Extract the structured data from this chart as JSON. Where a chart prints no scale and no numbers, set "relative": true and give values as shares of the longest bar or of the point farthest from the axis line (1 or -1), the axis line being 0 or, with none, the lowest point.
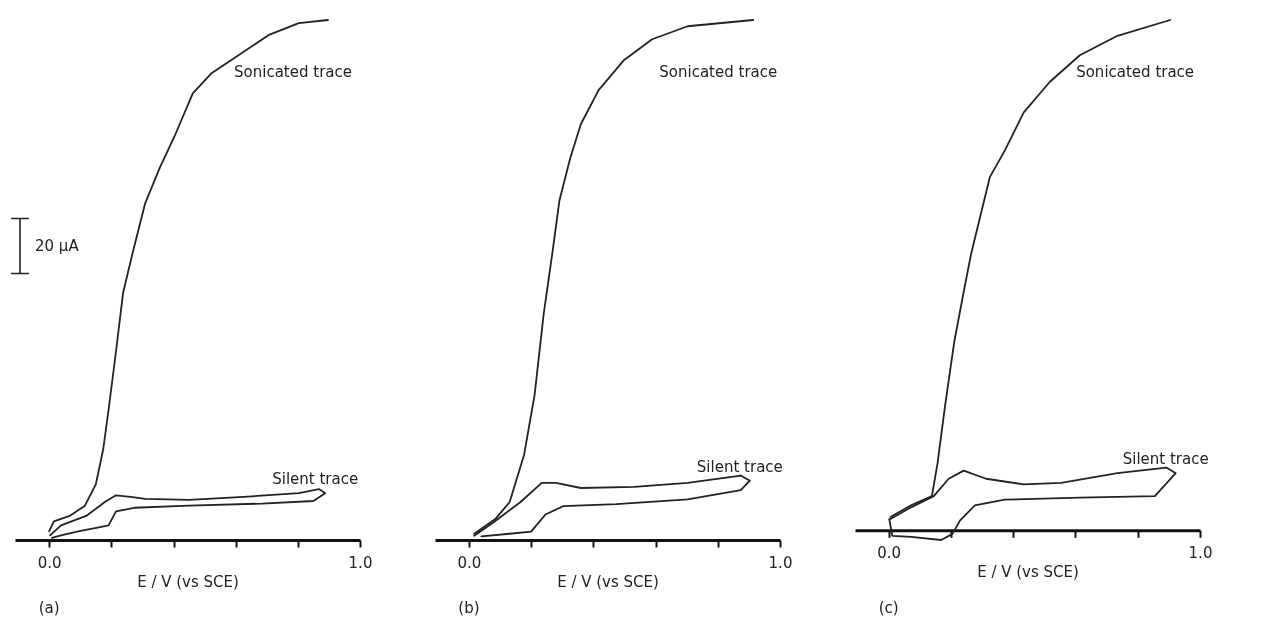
{
  "chart_data": [
    {
      "type": "line",
      "relative": true,
      "xlabel": "E / V (vs SCE)",
      "xlim": [
        -0.11,
        1.0
      ],
      "xticks": [
        {
          "value": 0,
          "label": "0.0"
        },
        {
          "value": 0.2,
          "label": null
        },
        {
          "value": 0.4,
          "label": null
        },
        {
          "value": 0.6,
          "label": null
        },
        {
          "value": 0.8,
          "label": null
        },
        {
          "value": 1.0,
          "label": "1.0"
        }
      ],
      "annotations": [
        "(a)",
        "20 μA"
      ],
      "series": [
        {
          "name": "Sonicated trace",
          "color": "#222222",
          "x": [
            0,
            0.015,
            0.068,
            0.115,
            0.15,
            0.174,
            0.191,
            0.215,
            0.238,
            0.268,
            0.309,
            0.356,
            0.403,
            0.462,
            0.521,
            0.603,
            0.709,
            0.803,
            0.897
          ],
          "values": [
            0.017,
            0.036,
            0.047,
            0.066,
            0.107,
            0.175,
            0.25,
            0.363,
            0.476,
            0.551,
            0.648,
            0.716,
            0.776,
            0.859,
            0.897,
            0.93,
            0.972,
            0.994,
            1.0
          ]
        },
        {
          "name": "Silent trace",
          "color": "#222222",
          "x": [
            0.003,
            0.038,
            0.121,
            0.179,
            0.215,
            0.262,
            0.309,
            0.45,
            0.626,
            0.803,
            0.868,
            0.888,
            0.85,
            0.685,
            0.45,
            0.274,
            0.215,
            0.191,
            0.156,
            0.097,
            0.038,
            0.009
          ],
          "values": [
            0.009,
            0.028,
            0.047,
            0.073,
            0.086,
            0.083,
            0.079,
            0.077,
            0.083,
            0.09,
            0.098,
            0.09,
            0.075,
            0.07,
            0.066,
            0.062,
            0.055,
            0.028,
            0.024,
            0.017,
            0.009,
            0.004
          ]
        }
      ]
    },
    {
      "type": "line",
      "relative": true,
      "xlabel": "E / V (vs SCE)",
      "xlim": [
        -0.109,
        1.0
      ],
      "xticks": [
        {
          "value": 0,
          "label": "0.0"
        },
        {
          "value": 0.2,
          "label": null
        },
        {
          "value": 0.4,
          "label": null
        },
        {
          "value": 0.6,
          "label": null
        },
        {
          "value": 0.8,
          "label": null
        },
        {
          "value": 1.0,
          "label": "1.0"
        }
      ],
      "annotations": [
        "(b)"
      ],
      "series": [
        {
          "name": "Sonicated trace",
          "color": "#222222",
          "x": [
            0.017,
            0.086,
            0.131,
            0.177,
            0.211,
            0.24,
            0.269,
            0.291,
            0.326,
            0.36,
            0.417,
            0.497,
            0.589,
            0.703,
            0.914
          ],
          "values": [
            0.012,
            0.041,
            0.073,
            0.163,
            0.278,
            0.433,
            0.555,
            0.653,
            0.735,
            0.8,
            0.865,
            0.922,
            0.963,
            0.988,
            1.0
          ]
        },
        {
          "name": "Silent trace",
          "color": "#222222",
          "x": [
            0.017,
            0.086,
            0.166,
            0.234,
            0.28,
            0.36,
            0.531,
            0.703,
            0.874,
            0.903,
            0.874,
            0.703,
            0.474,
            0.303,
            0.246,
            0.2,
            0.131,
            0.04
          ],
          "values": [
            0.008,
            0.037,
            0.073,
            0.11,
            0.11,
            0.1,
            0.102,
            0.11,
            0.124,
            0.114,
            0.096,
            0.078,
            0.069,
            0.065,
            0.049,
            0.016,
            0.012,
            0.007
          ]
        }
      ]
    },
    {
      "type": "line",
      "relative": true,
      "xlabel": "E / V (vs SCE)",
      "xlim": [
        -0.108,
        1.0
      ],
      "xticks": [
        {
          "value": 0,
          "label": "0.0"
        },
        {
          "value": 0.2,
          "label": null
        },
        {
          "value": 0.4,
          "label": null
        },
        {
          "value": 0.6,
          "label": null
        },
        {
          "value": 0.8,
          "label": null
        },
        {
          "value": 1.0,
          "label": "1.0"
        }
      ],
      "annotations": [
        "(c)"
      ],
      "series": [
        {
          "name": "Sonicated trace",
          "color": "#222222",
          "x": [
            0.006,
            0.072,
            0.139,
            0.157,
            0.181,
            0.211,
            0.241,
            0.265,
            0.295,
            0.325,
            0.373,
            0.434,
            0.518,
            0.614,
            0.735,
            0.904
          ],
          "values": [
            0.026,
            0.049,
            0.067,
            0.131,
            0.243,
            0.37,
            0.467,
            0.542,
            0.617,
            0.692,
            0.744,
            0.819,
            0.879,
            0.931,
            0.969,
            1.0
          ]
        },
        {
          "name": "Silent trace",
          "color": "#222222",
          "x": [
            0.006,
            0.072,
            0.145,
            0.193,
            0.241,
            0.313,
            0.434,
            0.554,
            0.735,
            0.892,
            0.922,
            0.855,
            0.614,
            0.373,
            0.277,
            0.229,
            0.205,
            0.169,
            0.072,
            0.012,
            0.002
          ],
          "values": [
            0.022,
            0.045,
            0.067,
            0.101,
            0.117,
            0.101,
            0.09,
            0.093,
            0.112,
            0.123,
            0.112,
            0.067,
            0.064,
            0.06,
            0.049,
            0.019,
            -0.007,
            -0.019,
            -0.013,
            -0.011,
            0.022
          ]
        }
      ]
    }
  ]
}
